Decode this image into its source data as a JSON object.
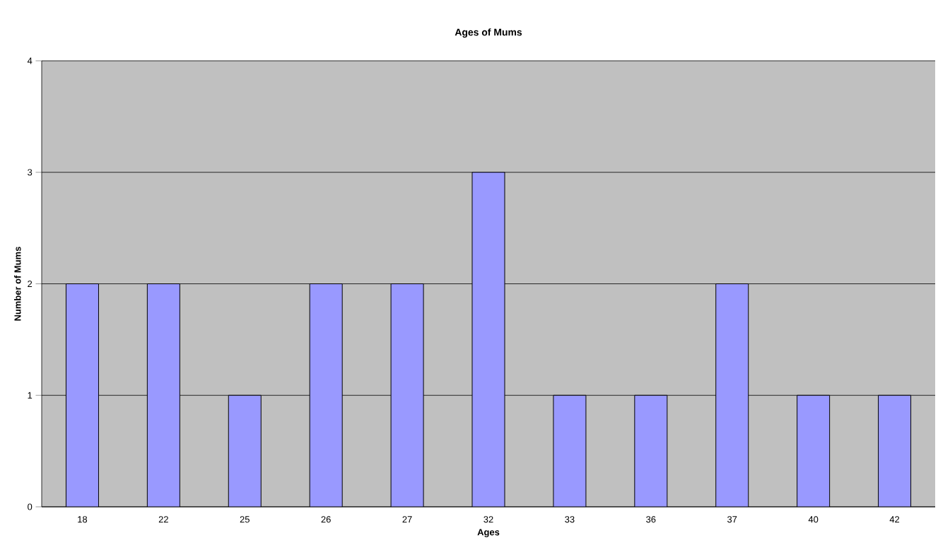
{
  "chart_data": {
    "type": "bar",
    "title": "Ages of Mums",
    "xlabel": "Ages",
    "ylabel": "Number of Mums",
    "categories": [
      "18",
      "22",
      "25",
      "26",
      "27",
      "32",
      "33",
      "36",
      "37",
      "40",
      "42"
    ],
    "values": [
      2,
      2,
      1,
      2,
      2,
      3,
      1,
      1,
      2,
      1,
      1
    ],
    "color": "#9999ff",
    "ylim": [
      0,
      4
    ],
    "yticks": [
      0,
      1,
      2,
      3,
      4
    ],
    "grid": "y"
  }
}
